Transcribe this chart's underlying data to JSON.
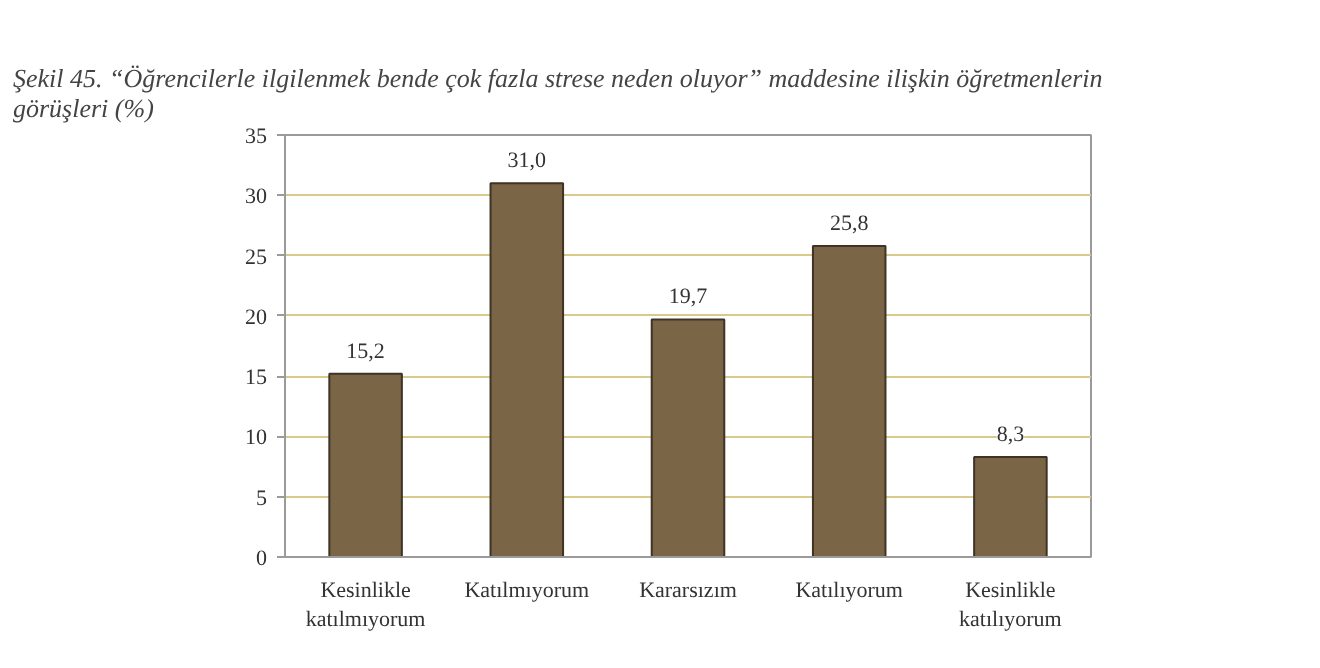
{
  "chart_data": {
    "type": "bar",
    "title": "Şekil 45. “Öğrencilerle ilgilenmek bende çok fazla strese neden oluyor” maddesine ilişkin öğretmenlerin görüşleri (%)",
    "categories": [
      "Kesinlikle katılmıyorum",
      "Katılmıyorum",
      "Kararsızım",
      "Katılıyorum",
      "Kesinlikle katılıyorum"
    ],
    "values": [
      15.2,
      31.0,
      19.7,
      25.8,
      8.3
    ],
    "value_labels": [
      "15,2",
      "31,0",
      "19,7",
      "25,8",
      "8,3"
    ],
    "color": "#7a6546",
    "ylim": [
      0,
      35
    ],
    "yticks": [
      0,
      5,
      10,
      15,
      20,
      25,
      30,
      35
    ],
    "grid": "y"
  }
}
